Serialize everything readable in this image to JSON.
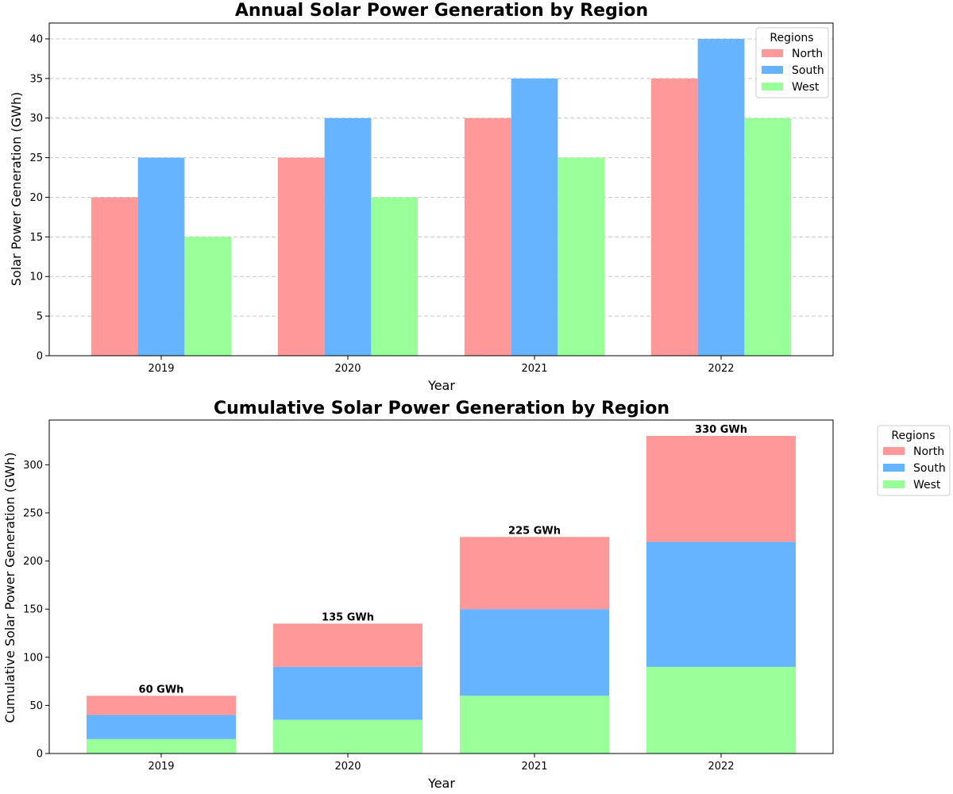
{
  "chart_data": [
    {
      "type": "bar",
      "title": "Annual Solar Power Generation by Region",
      "xlabel": "Year",
      "ylabel": "Solar Power Generation (GWh)",
      "categories": [
        "2019",
        "2020",
        "2021",
        "2022"
      ],
      "ylim": [
        0,
        42
      ],
      "yticks": [
        0,
        5,
        10,
        15,
        20,
        25,
        30,
        35,
        40
      ],
      "grid": true,
      "legend": {
        "title": "Regions",
        "placement": "upper right inside"
      },
      "series": [
        {
          "name": "North",
          "color": "#ff9999",
          "values": [
            20,
            25,
            30,
            35
          ]
        },
        {
          "name": "South",
          "color": "#66b3ff",
          "values": [
            25,
            30,
            35,
            40
          ]
        },
        {
          "name": "West",
          "color": "#99ff99",
          "values": [
            15,
            20,
            25,
            30
          ]
        }
      ]
    },
    {
      "type": "bar",
      "stacked": true,
      "title": "Cumulative Solar Power Generation by Region",
      "xlabel": "Year",
      "ylabel": "Cumulative Solar Power Generation (GWh)",
      "categories": [
        "2019",
        "2020",
        "2021",
        "2022"
      ],
      "ylim": [
        0,
        346.5
      ],
      "yticks": [
        0,
        50,
        100,
        150,
        200,
        250,
        300
      ],
      "grid": false,
      "legend": {
        "title": "Regions",
        "placement": "outside right"
      },
      "series": [
        {
          "name": "West",
          "color": "#99ff99",
          "values": [
            15,
            35,
            60,
            90
          ]
        },
        {
          "name": "South",
          "color": "#66b3ff",
          "values": [
            25,
            55,
            90,
            130
          ]
        },
        {
          "name": "North",
          "color": "#ff9999",
          "values": [
            20,
            45,
            75,
            110
          ]
        }
      ],
      "legend_order": [
        "North",
        "South",
        "West"
      ],
      "totals": [
        60,
        135,
        225,
        330
      ],
      "total_labels": [
        "60 GWh",
        "135 GWh",
        "225 GWh",
        "330 GWh"
      ]
    }
  ]
}
